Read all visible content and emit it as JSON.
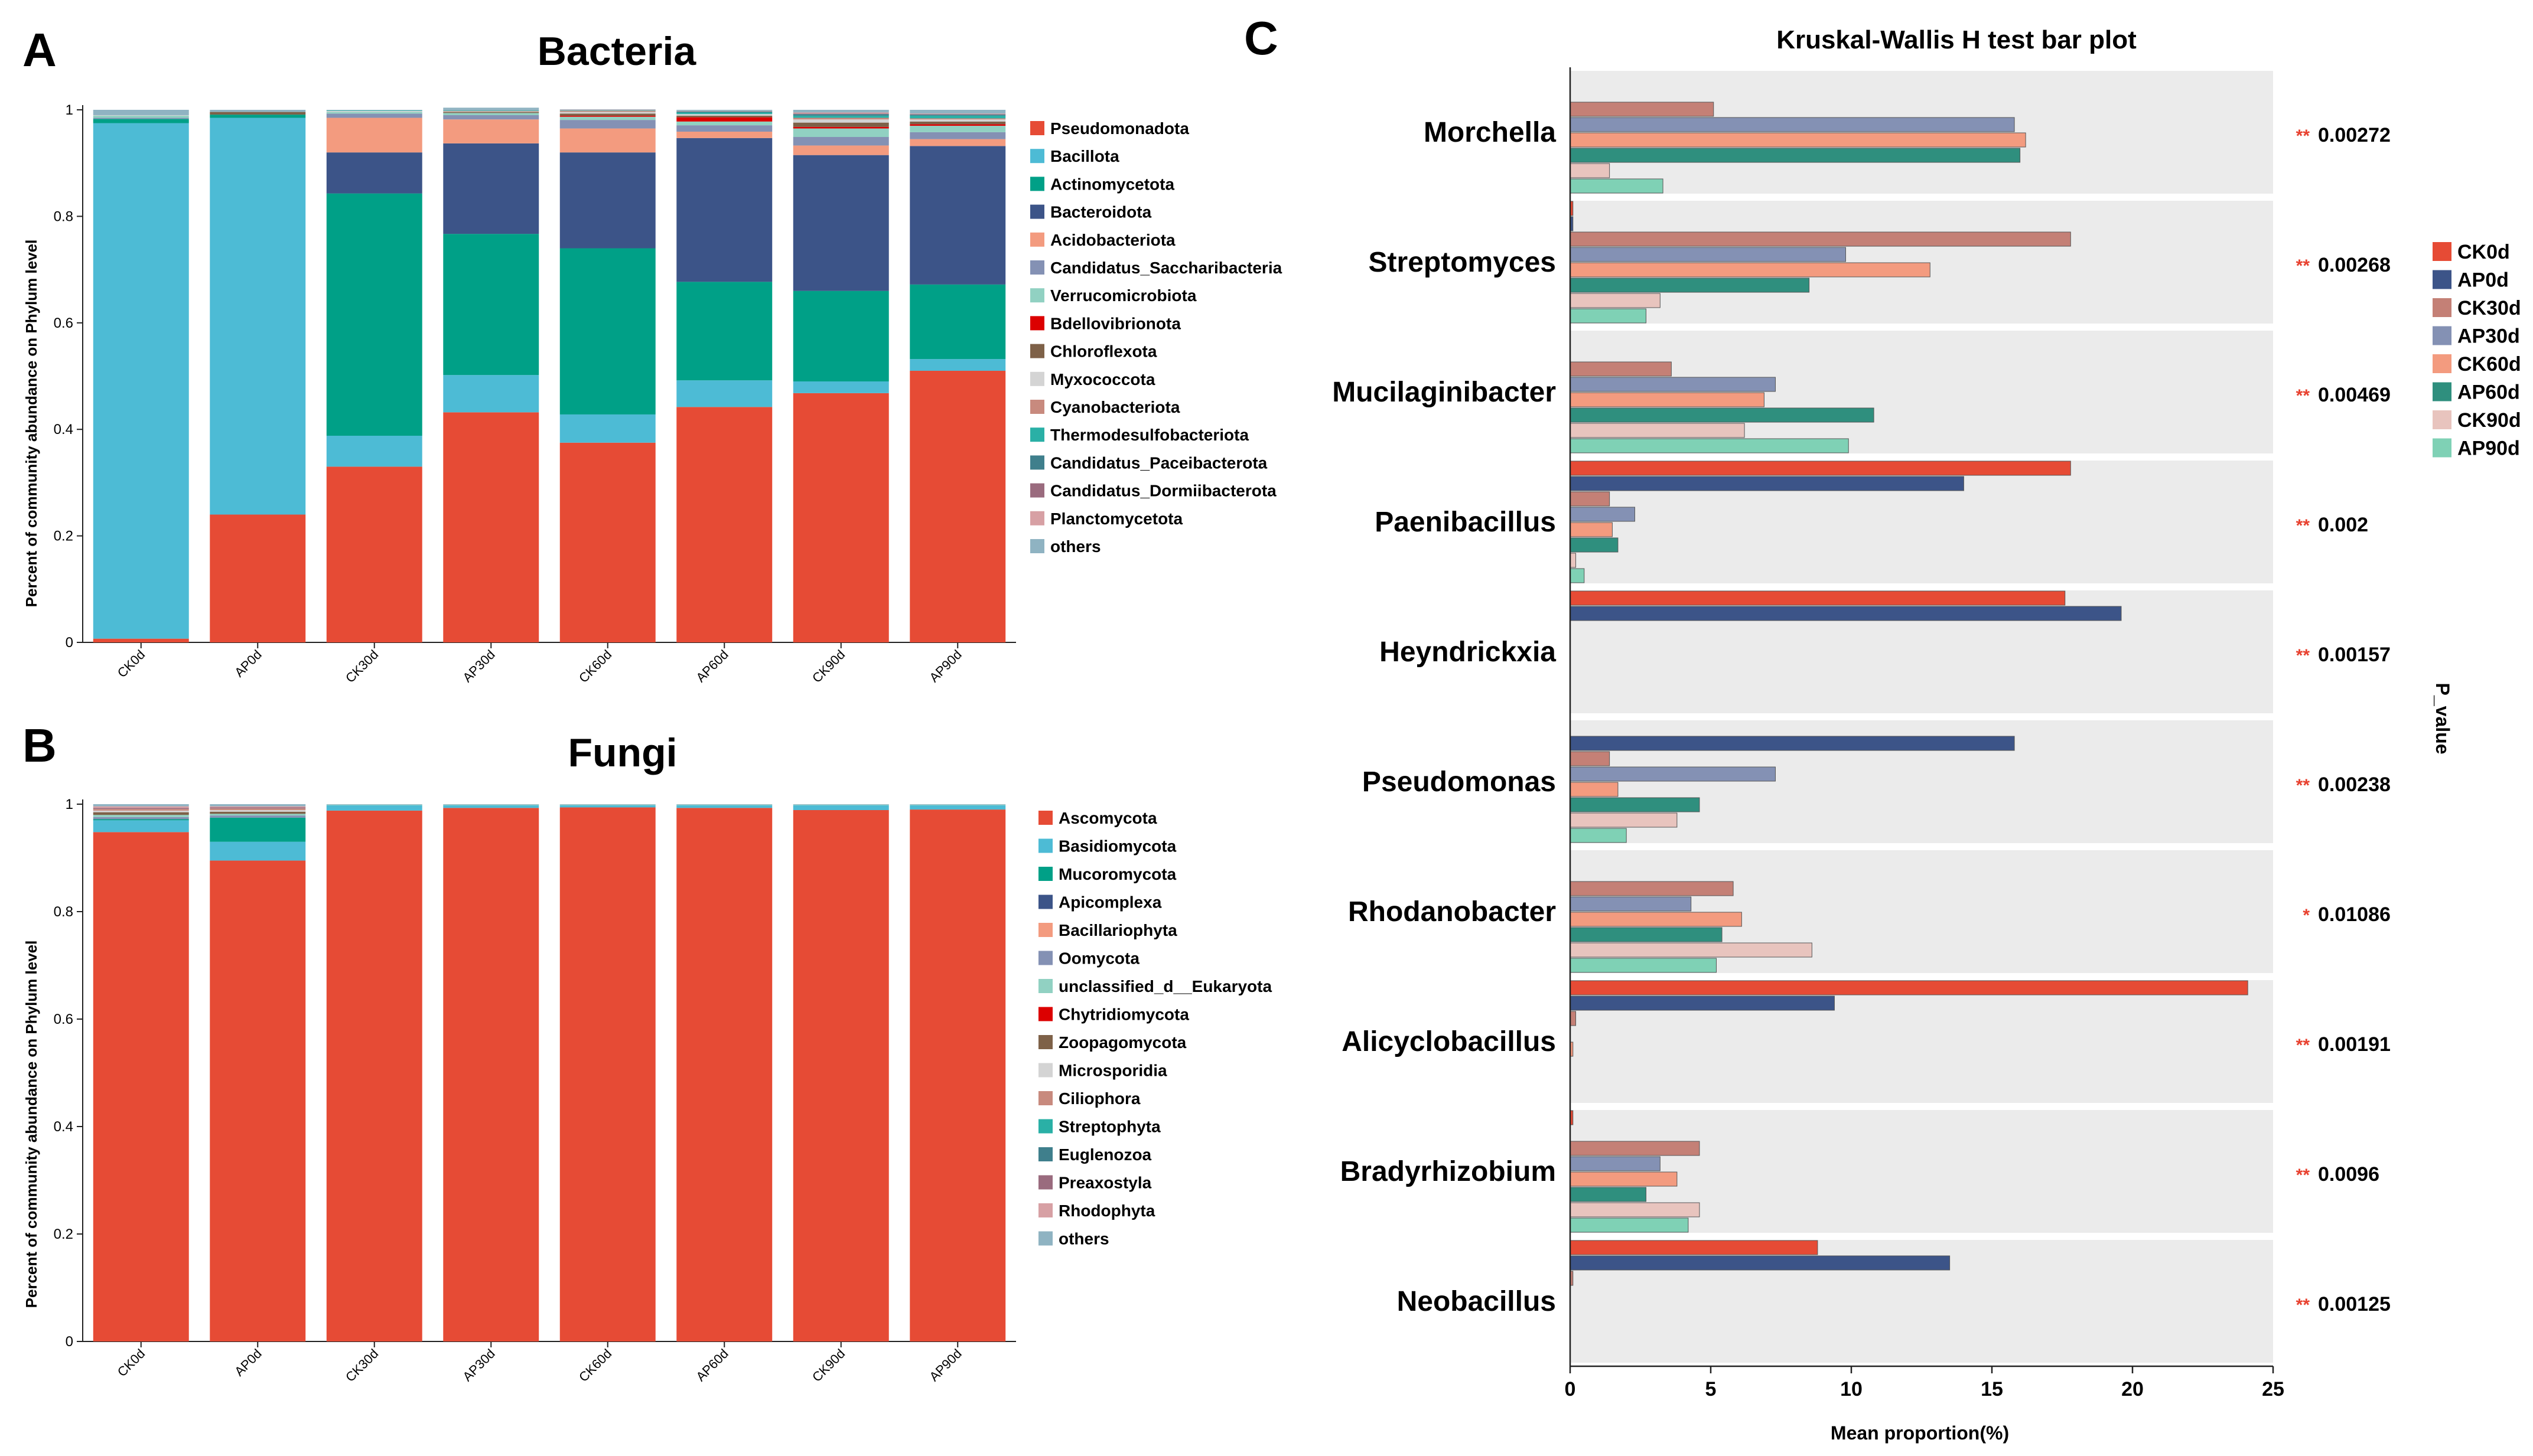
{
  "panels": {
    "a_letter": "A",
    "b_letter": "B",
    "c_letter": "C"
  },
  "chart_data": [
    {
      "type": "bar",
      "stacked": true,
      "title": "Bacteria",
      "ylabel": "Percent of community abundance on Phylum level",
      "ylim": [
        0,
        1
      ],
      "yticks": [
        "0",
        "0.2",
        "0.4",
        "0.6",
        "0.8",
        "1"
      ],
      "categories": [
        "CK0d",
        "AP0d",
        "CK30d",
        "AP30d",
        "CK60d",
        "AP60d",
        "CK90d",
        "AP90d"
      ],
      "legend_position": "right",
      "series": [
        {
          "name": "Pseudomonadota",
          "color": "#e64b35",
          "values": [
            0.007,
            0.24,
            0.33,
            0.432,
            0.375,
            0.442,
            0.468,
            0.51
          ]
        },
        {
          "name": "Bacillota",
          "color": "#4dbbd5",
          "values": [
            0.968,
            0.745,
            0.058,
            0.07,
            0.053,
            0.05,
            0.022,
            0.022
          ]
        },
        {
          "name": "Actinomycetota",
          "color": "#00a087",
          "values": [
            0.008,
            0.006,
            0.455,
            0.265,
            0.312,
            0.185,
            0.17,
            0.14
          ]
        },
        {
          "name": "Bacteroidota",
          "color": "#3c5488",
          "values": [
            0.0,
            0.0,
            0.077,
            0.17,
            0.18,
            0.27,
            0.255,
            0.26
          ]
        },
        {
          "name": "Acidobacteriota",
          "color": "#f39b7f",
          "values": [
            0.0,
            0.0,
            0.065,
            0.045,
            0.045,
            0.012,
            0.018,
            0.013
          ]
        },
        {
          "name": "Candidatus_Saccharibacteria",
          "color": "#8491b4",
          "values": [
            0.002,
            0.0,
            0.008,
            0.008,
            0.016,
            0.012,
            0.016,
            0.013
          ]
        },
        {
          "name": "Verrucomicrobiota",
          "color": "#91d1c2",
          "values": [
            0.004,
            0.0,
            0.003,
            0.004,
            0.006,
            0.007,
            0.016,
            0.012
          ]
        },
        {
          "name": "Bdellovibrionota",
          "color": "#dc0000",
          "values": [
            0.0,
            0.0,
            0.0,
            0.0,
            0.002,
            0.008,
            0.003,
            0.003
          ]
        },
        {
          "name": "Chloroflexota",
          "color": "#7e6148",
          "values": [
            0.0,
            0.005,
            0.0,
            0.002,
            0.004,
            0.003,
            0.008,
            0.005
          ]
        },
        {
          "name": "Myxococcota",
          "color": "#d4d4d4",
          "values": [
            0.001,
            0.0,
            0.002,
            0.001,
            0.003,
            0.003,
            0.006,
            0.004
          ]
        },
        {
          "name": "Cyanobacteriota",
          "color": "#c88a7e",
          "values": [
            0.0,
            0.0,
            0.0,
            0.001,
            0.002,
            0.0,
            0.003,
            0.002
          ]
        },
        {
          "name": "Thermodesulfobacteriota",
          "color": "#2ab0a6",
          "values": [
            0.0,
            0.0,
            0.001,
            0.001,
            0.001,
            0.003,
            0.004,
            0.005
          ]
        },
        {
          "name": "Candidatus_Paceibacterota",
          "color": "#3f7f8c",
          "values": [
            0.0,
            0.0,
            0.0,
            0.0,
            0.0,
            0.002,
            0.003,
            0.002
          ]
        },
        {
          "name": "Candidatus_Dormiibacterota",
          "color": "#9a6b7e",
          "values": [
            0.0,
            0.0,
            0.0,
            0.0,
            0.0,
            0.0,
            0.001,
            0.001
          ]
        },
        {
          "name": "Planctomycetota",
          "color": "#d7a0a4",
          "values": [
            0.0,
            0.0,
            0.0,
            0.0,
            0.001,
            0.001,
            0.002,
            0.001
          ]
        },
        {
          "name": "others",
          "color": "#8fb3c2",
          "values": [
            0.01,
            0.004,
            0.001,
            0.005,
            0.001,
            0.002,
            0.005,
            0.007
          ]
        }
      ]
    },
    {
      "type": "bar",
      "stacked": true,
      "title": "Fungi",
      "ylabel": "Percent of community abundance on Phylum level",
      "ylim": [
        0,
        1
      ],
      "yticks": [
        "0",
        "0.2",
        "0.4",
        "0.6",
        "0.8",
        "1"
      ],
      "categories": [
        "CK0d",
        "AP0d",
        "CK30d",
        "AP30d",
        "CK60d",
        "AP60d",
        "CK90d",
        "AP90d"
      ],
      "legend_position": "right",
      "series": [
        {
          "name": "Ascomycota",
          "color": "#e64b35",
          "values": [
            0.948,
            0.895,
            0.988,
            0.993,
            0.994,
            0.993,
            0.989,
            0.99
          ]
        },
        {
          "name": "Basidiomycota",
          "color": "#4dbbd5",
          "values": [
            0.022,
            0.035,
            0.01,
            0.005,
            0.004,
            0.005,
            0.009,
            0.008
          ]
        },
        {
          "name": "Mucoromycota",
          "color": "#00a087",
          "values": [
            0.002,
            0.045,
            0.0,
            0.0,
            0.0,
            0.0,
            0.0,
            0.0
          ]
        },
        {
          "name": "Apicomplexa",
          "color": "#3c5488",
          "values": [
            0.0,
            0.0,
            0.0,
            0.0,
            0.0,
            0.0,
            0.0,
            0.0
          ]
        },
        {
          "name": "Bacillariophyta",
          "color": "#f39b7f",
          "values": [
            0.0,
            0.0,
            0.0,
            0.0,
            0.0,
            0.0,
            0.0,
            0.0
          ]
        },
        {
          "name": "Oomycota",
          "color": "#8491b4",
          "values": [
            0.004,
            0.004,
            0.0,
            0.0,
            0.0,
            0.0,
            0.0,
            0.0
          ]
        },
        {
          "name": "unclassified_d__Eukaryota",
          "color": "#91d1c2",
          "values": [
            0.004,
            0.003,
            0.001,
            0.001,
            0.001,
            0.001,
            0.001,
            0.001
          ]
        },
        {
          "name": "Chytridiomycota",
          "color": "#dc0000",
          "values": [
            0.0,
            0.0,
            0.0,
            0.0,
            0.0,
            0.0,
            0.0,
            0.0
          ]
        },
        {
          "name": "Zoopagomycota",
          "color": "#7e6148",
          "values": [
            0.005,
            0.004,
            0.0,
            0.0,
            0.0,
            0.0,
            0.0,
            0.0
          ]
        },
        {
          "name": "Microsporidia",
          "color": "#d4d4d4",
          "values": [
            0.003,
            0.003,
            0.0,
            0.0,
            0.0,
            0.0,
            0.0,
            0.0
          ]
        },
        {
          "name": "Ciliophora",
          "color": "#c88a7e",
          "values": [
            0.003,
            0.003,
            0.0,
            0.0,
            0.0,
            0.0,
            0.0,
            0.0
          ]
        },
        {
          "name": "Streptophyta",
          "color": "#2ab0a6",
          "values": [
            0.0,
            0.0,
            0.0,
            0.0,
            0.0,
            0.0,
            0.0,
            0.0
          ]
        },
        {
          "name": "Euglenozoa",
          "color": "#3f7f8c",
          "values": [
            0.0,
            0.0,
            0.0,
            0.0,
            0.0,
            0.0,
            0.0,
            0.0
          ]
        },
        {
          "name": "Preaxostyla",
          "color": "#9a6b7e",
          "values": [
            0.002,
            0.002,
            0.0,
            0.0,
            0.0,
            0.0,
            0.0,
            0.0
          ]
        },
        {
          "name": "Rhodophyta",
          "color": "#d7a0a4",
          "values": [
            0.003,
            0.002,
            0.0,
            0.0,
            0.0,
            0.0,
            0.0,
            0.0
          ]
        },
        {
          "name": "others",
          "color": "#8fb3c2",
          "values": [
            0.004,
            0.004,
            0.001,
            0.001,
            0.001,
            0.001,
            0.001,
            0.001
          ]
        }
      ]
    },
    {
      "type": "bar",
      "orientation": "horizontal",
      "title": "Kruskal-Wallis H test bar plot",
      "xlabel": "Mean proportion(%)",
      "right_axis_label": "P_value",
      "xlim": [
        0,
        25
      ],
      "xticks": [
        "0",
        "5",
        "10",
        "15",
        "20",
        "25"
      ],
      "legend_position": "right",
      "groups": [
        "CK0d",
        "AP0d",
        "CK30d",
        "AP30d",
        "CK60d",
        "AP60d",
        "CK90d",
        "AP90d"
      ],
      "colors": [
        "#e64b35",
        "#3c5488",
        "#c48076",
        "#8491b4",
        "#f39b7f",
        "#2f8f7e",
        "#e8c4be",
        "#7fd1b5"
      ],
      "categories": [
        "Morchella",
        "Streptomyces",
        "Mucilaginibacter",
        "Paenibacillus",
        "Heyndrickxia",
        "Pseudomonas",
        "Rhodanobacter",
        "Alicyclobacillus",
        "Bradyrhizobium",
        "Neobacillus"
      ],
      "stars": [
        "**",
        "**",
        "**",
        "**",
        "**",
        "**",
        "*",
        "**",
        "**",
        "**"
      ],
      "p_values": [
        "0.00272",
        "0.00268",
        "0.00469",
        "0.002",
        "0.00157",
        "0.00238",
        "0.01086",
        "0.00191",
        "0.0096",
        "0.00125"
      ],
      "values": [
        [
          0.0,
          0.0,
          5.1,
          15.8,
          16.2,
          16.0,
          1.4,
          3.3
        ],
        [
          0.1,
          0.1,
          17.8,
          9.8,
          12.8,
          8.5,
          3.2,
          2.7
        ],
        [
          0.0,
          0.0,
          3.6,
          7.3,
          6.9,
          10.8,
          6.2,
          9.9
        ],
        [
          17.8,
          14.0,
          1.4,
          2.3,
          1.5,
          1.7,
          0.2,
          0.5
        ],
        [
          17.6,
          19.6,
          0.0,
          0.0,
          0.0,
          0.0,
          0.0,
          0.0
        ],
        [
          0.0,
          15.8,
          1.4,
          7.3,
          1.7,
          4.6,
          3.8,
          2.0
        ],
        [
          0.0,
          0.0,
          5.8,
          4.3,
          6.1,
          5.4,
          8.6,
          5.2
        ],
        [
          24.1,
          9.4,
          0.2,
          0.0,
          0.1,
          0.0,
          0.0,
          0.0
        ],
        [
          0.1,
          0.0,
          4.6,
          3.2,
          3.8,
          2.7,
          4.6,
          4.2
        ],
        [
          8.8,
          13.5,
          0.1,
          0.0,
          0.0,
          0.0,
          0.0,
          0.0
        ]
      ]
    }
  ]
}
